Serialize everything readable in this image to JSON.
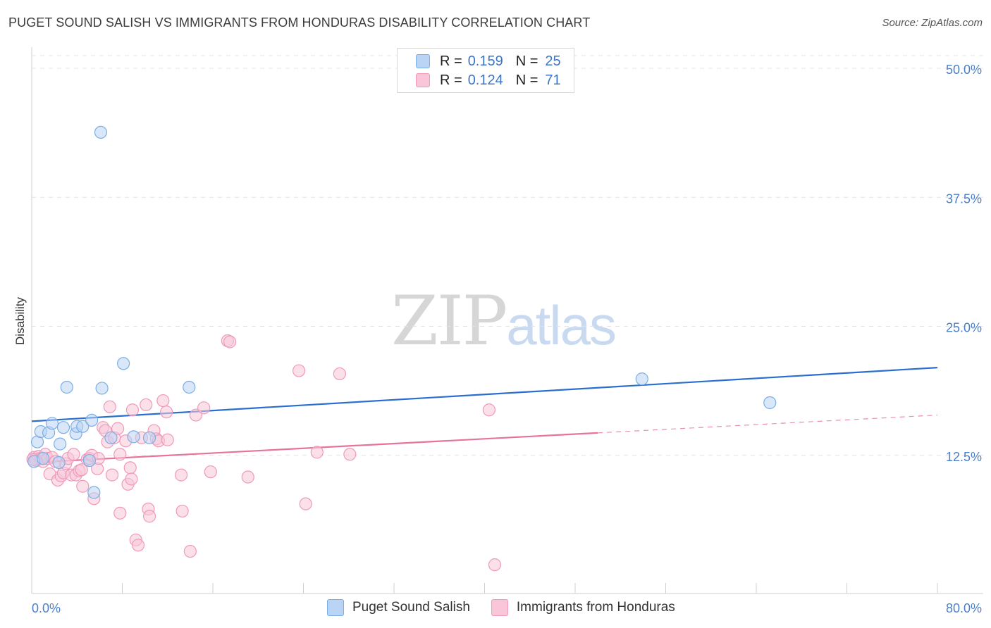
{
  "title": "PUGET SOUND SALISH VS IMMIGRANTS FROM HONDURAS DISABILITY CORRELATION CHART",
  "source": "Source: ZipAtlas.com",
  "watermark": {
    "zip": "ZIP",
    "atlas": "atlas"
  },
  "legend": {
    "r_label": "R =",
    "n_label": "N =",
    "series1": {
      "r": "0.159",
      "n": "25"
    },
    "series2": {
      "r": "0.124",
      "n": "71"
    }
  },
  "colors": {
    "blue": "#7aaee6",
    "blue_fill": "#b9d4f4",
    "blue_line": "#2a6fcf",
    "pink": "#ef9ab8",
    "pink_fill": "#f8c6d8",
    "pink_line": "#e5739a",
    "axis_label": "#4a7fc8"
  },
  "chart_data": {
    "type": "scatter",
    "title": "PUGET SOUND SALISH VS IMMIGRANTS FROM HONDURAS DISABILITY CORRELATION CHART",
    "xlabel": "",
    "ylabel": "Disability",
    "xlim": [
      0,
      80
    ],
    "ylim": [
      0,
      52
    ],
    "x_tick_labels": [
      "0.0%",
      "80.0%"
    ],
    "y_ticks": [
      12.5,
      25.0,
      37.5,
      50.0
    ],
    "y_tick_labels": [
      "12.5%",
      "25.0%",
      "37.5%",
      "50.0%"
    ],
    "series": [
      {
        "name": "Puget Sound Salish",
        "r": 0.159,
        "n": 25,
        "trend": {
          "x0": 0,
          "y0": 15.8,
          "x1": 80,
          "y1": 21.0,
          "dashed_from": null
        },
        "points": [
          [
            0.2,
            11.9
          ],
          [
            0.5,
            13.8
          ],
          [
            0.8,
            14.8
          ],
          [
            1.5,
            14.7
          ],
          [
            1.8,
            15.6
          ],
          [
            2.4,
            11.8
          ],
          [
            2.5,
            13.6
          ],
          [
            2.8,
            15.2
          ],
          [
            3.1,
            19.1
          ],
          [
            3.9,
            14.6
          ],
          [
            4.0,
            15.3
          ],
          [
            4.5,
            15.3
          ],
          [
            5.1,
            12.0
          ],
          [
            5.3,
            15.9
          ],
          [
            5.5,
            8.9
          ],
          [
            6.1,
            43.8
          ],
          [
            6.2,
            19.0
          ],
          [
            7.0,
            14.2
          ],
          [
            8.1,
            21.4
          ],
          [
            9.0,
            14.3
          ],
          [
            10.4,
            14.2
          ],
          [
            13.9,
            19.1
          ],
          [
            53.9,
            19.9
          ],
          [
            65.2,
            17.6
          ],
          [
            1.0,
            12.2
          ]
        ]
      },
      {
        "name": "Immigrants from Honduras",
        "r": 0.124,
        "n": 71,
        "trend": {
          "x0": 0,
          "y0": 11.8,
          "x1": 80,
          "y1": 16.4,
          "dashed_from": 50
        },
        "points": [
          [
            0.2,
            12.3
          ],
          [
            0.3,
            12.1
          ],
          [
            0.4,
            12.0
          ],
          [
            0.6,
            12.4
          ],
          [
            0.8,
            12.2
          ],
          [
            1.0,
            11.9
          ],
          [
            1.2,
            12.6
          ],
          [
            1.4,
            12.2
          ],
          [
            1.6,
            10.7
          ],
          [
            1.8,
            12.3
          ],
          [
            2.1,
            11.9
          ],
          [
            2.3,
            10.1
          ],
          [
            2.6,
            10.5
          ],
          [
            2.8,
            10.8
          ],
          [
            3.0,
            11.7
          ],
          [
            3.2,
            12.2
          ],
          [
            3.5,
            10.6
          ],
          [
            3.7,
            12.6
          ],
          [
            3.9,
            10.6
          ],
          [
            4.2,
            11.0
          ],
          [
            4.4,
            11.1
          ],
          [
            4.5,
            9.5
          ],
          [
            4.9,
            12.1
          ],
          [
            5.1,
            12.2
          ],
          [
            5.3,
            12.5
          ],
          [
            5.5,
            8.3
          ],
          [
            5.8,
            11.2
          ],
          [
            5.9,
            12.2
          ],
          [
            6.3,
            15.2
          ],
          [
            6.5,
            14.9
          ],
          [
            6.7,
            13.8
          ],
          [
            6.9,
            17.2
          ],
          [
            7.1,
            10.6
          ],
          [
            7.3,
            14.2
          ],
          [
            7.6,
            15.1
          ],
          [
            7.8,
            12.6
          ],
          [
            7.8,
            6.9
          ],
          [
            8.3,
            13.9
          ],
          [
            8.5,
            9.7
          ],
          [
            8.7,
            11.3
          ],
          [
            8.8,
            10.2
          ],
          [
            8.9,
            16.9
          ],
          [
            9.2,
            4.3
          ],
          [
            9.4,
            3.8
          ],
          [
            9.7,
            14.2
          ],
          [
            10.1,
            17.4
          ],
          [
            10.3,
            7.3
          ],
          [
            10.4,
            6.6
          ],
          [
            10.8,
            14.9
          ],
          [
            11.0,
            14.1
          ],
          [
            11.2,
            13.9
          ],
          [
            11.6,
            17.8
          ],
          [
            11.9,
            16.7
          ],
          [
            12.0,
            14.0
          ],
          [
            13.2,
            10.6
          ],
          [
            13.3,
            7.1
          ],
          [
            14.0,
            3.2
          ],
          [
            14.5,
            16.4
          ],
          [
            15.2,
            17.1
          ],
          [
            15.8,
            10.9
          ],
          [
            17.3,
            23.6
          ],
          [
            17.5,
            23.5
          ],
          [
            19.1,
            10.4
          ],
          [
            23.6,
            20.7
          ],
          [
            24.2,
            7.8
          ],
          [
            25.2,
            12.8
          ],
          [
            27.2,
            20.4
          ],
          [
            28.1,
            12.6
          ],
          [
            40.4,
            16.9
          ],
          [
            40.9,
            1.9
          ],
          [
            0.1,
            12.1
          ]
        ]
      }
    ]
  }
}
